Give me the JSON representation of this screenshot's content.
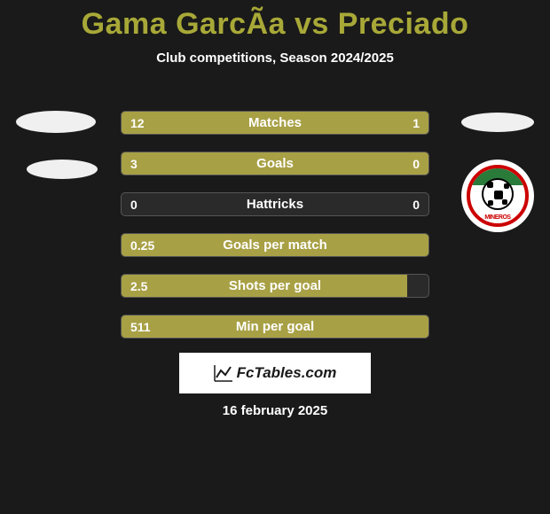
{
  "title": "Gama GarcÃ­a vs Preciado",
  "subtitle": "Club competitions, Season 2024/2025",
  "date": "16 february 2025",
  "brand": "FcTables.com",
  "colors": {
    "accent": "#a8a045",
    "title_color": "#a8a838",
    "background": "#1a1a1a",
    "bar_bg": "#2a2a2a",
    "badge_red": "#c00",
    "badge_green": "#2a7a3a"
  },
  "rows": [
    {
      "label": "Matches",
      "left": "12",
      "right": "1",
      "left_pct": 78,
      "right_pct": 22
    },
    {
      "label": "Goals",
      "left": "3",
      "right": "0",
      "left_pct": 100,
      "right_pct": 0
    },
    {
      "label": "Hattricks",
      "left": "0",
      "right": "0",
      "left_pct": 0,
      "right_pct": 0
    },
    {
      "label": "Goals per match",
      "left": "0.25",
      "right": "",
      "left_pct": 100,
      "right_pct": 0
    },
    {
      "label": "Shots per goal",
      "left": "2.5",
      "right": "",
      "left_pct": 93,
      "right_pct": 0
    },
    {
      "label": "Min per goal",
      "left": "511",
      "right": "",
      "left_pct": 100,
      "right_pct": 0
    }
  ],
  "badge_text": "MINEROS"
}
